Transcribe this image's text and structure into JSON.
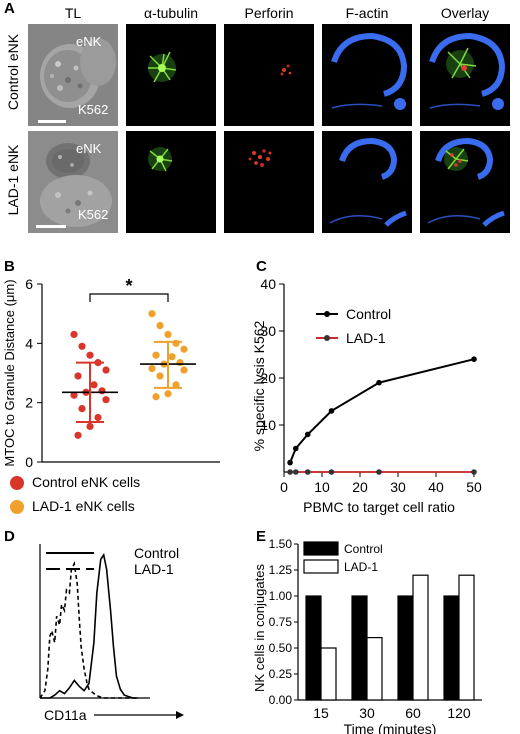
{
  "panels": {
    "A": "A",
    "B": "B",
    "C": "C",
    "D": "D",
    "E": "E"
  },
  "panel_a": {
    "columns": [
      "TL",
      "α-tubulin",
      "Perforin",
      "F-actin",
      "Overlay"
    ],
    "rows": [
      {
        "label": "Control eNK",
        "cell1": "eNK",
        "cell2": "K562"
      },
      {
        "label": "LAD-1  eNK",
        "cell1": "eNK",
        "cell2": "K562"
      }
    ]
  },
  "chart_data": [
    {
      "panel": "B",
      "type": "scatter",
      "ylabel": "MTOC to Granule Distance (μm)",
      "ylim": [
        0,
        6
      ],
      "yticks": [
        "0",
        "2",
        "4",
        "6"
      ],
      "significance": "*",
      "series": [
        {
          "name": "Control eNK cells",
          "color": "#d9352b",
          "mean": 2.35,
          "sd_low": 1.35,
          "sd_high": 3.35,
          "values": [
            4.3,
            3.9,
            3.6,
            3.35,
            3.1,
            2.9,
            2.6,
            2.4,
            2.35,
            2.25,
            2.1,
            1.8,
            1.5,
            1.2,
            0.9
          ]
        },
        {
          "name": "LAD-1 eNK cells",
          "color": "#f0a02c",
          "mean": 3.3,
          "sd_low": 2.5,
          "sd_high": 4.05,
          "values": [
            5.0,
            4.6,
            4.3,
            4.0,
            3.8,
            3.6,
            3.55,
            3.35,
            3.3,
            3.15,
            3.1,
            2.9,
            2.6,
            2.3,
            2.2
          ]
        }
      ]
    },
    {
      "panel": "C",
      "type": "line",
      "xlabel": "PBMC to target cell ratio",
      "ylabel": "% specific lysis K562",
      "xlim": [
        0,
        50
      ],
      "ylim": [
        0,
        40
      ],
      "xticks": [
        "0",
        "10",
        "20",
        "30",
        "40",
        "50"
      ],
      "yticks": [
        "10",
        "20",
        "30",
        "40"
      ],
      "series": [
        {
          "name": "Control",
          "color": "#000000",
          "x": [
            1.6,
            3.1,
            6.25,
            12.5,
            25,
            50
          ],
          "y": [
            2,
            5,
            8,
            13,
            19,
            24
          ]
        },
        {
          "name": "LAD-1",
          "color": "#cc2a2a",
          "x": [
            1.6,
            3.1,
            6.25,
            12.5,
            25,
            50
          ],
          "y": [
            0,
            0,
            0,
            0,
            0,
            0
          ]
        }
      ]
    },
    {
      "panel": "D",
      "type": "line",
      "xlabel": "CD11a",
      "series": [
        {
          "name": "Control",
          "style": "solid",
          "x": [
            0,
            5,
            10,
            15,
            20,
            25,
            30,
            35,
            40,
            45,
            50,
            55,
            58,
            62,
            65,
            68,
            72,
            75,
            78,
            82,
            86,
            90,
            95,
            100
          ],
          "y": [
            0,
            0,
            0,
            0.02,
            0.05,
            0.03,
            0.07,
            0.12,
            0.08,
            0.05,
            0.1,
            0.38,
            0.72,
            0.95,
            0.98,
            0.88,
            0.6,
            0.35,
            0.15,
            0.06,
            0.02,
            0.01,
            0,
            0
          ]
        },
        {
          "name": "LAD-1",
          "style": "dashed",
          "x": [
            0,
            5,
            8,
            10,
            12,
            15,
            17,
            20,
            22,
            25,
            27,
            30,
            32,
            35,
            38,
            40,
            42,
            45,
            48,
            50,
            55,
            60,
            65,
            100
          ],
          "y": [
            0,
            0.05,
            0.2,
            0.42,
            0.46,
            0.38,
            0.56,
            0.5,
            0.64,
            0.6,
            0.74,
            0.72,
            0.88,
            0.92,
            0.78,
            0.55,
            0.35,
            0.2,
            0.1,
            0.06,
            0.03,
            0.01,
            0,
            0
          ]
        }
      ]
    },
    {
      "panel": "E",
      "type": "bar",
      "xlabel": "Time (minutes)",
      "ylabel": "NK cells in conjugates",
      "ylim": [
        0,
        1.5
      ],
      "yticks": [
        "0.00",
        "0.25",
        "0.50",
        "0.75",
        "1.00",
        "1.25",
        "1.50"
      ],
      "categories": [
        "15",
        "30",
        "60",
        "120"
      ],
      "series": [
        {
          "name": "Control",
          "fill": "#000000",
          "values": [
            1.0,
            1.0,
            1.0,
            1.0
          ]
        },
        {
          "name": "LAD-1",
          "fill": "#ffffff",
          "values": [
            0.5,
            0.6,
            1.2,
            1.2
          ]
        }
      ]
    }
  ]
}
